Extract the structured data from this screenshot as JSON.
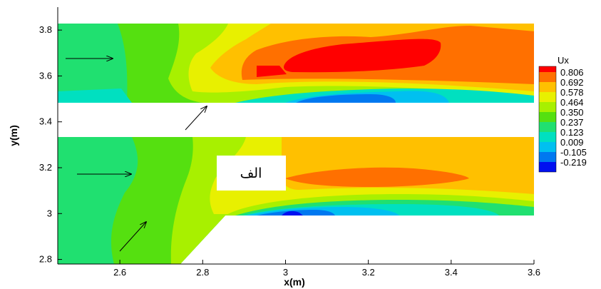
{
  "chart_data": {
    "type": "heatmap",
    "title": "",
    "xlabel": "x(m)",
    "ylabel": "y(m)",
    "xlim": [
      2.45,
      3.6
    ],
    "ylim": [
      2.78,
      3.9
    ],
    "x_ticks": [
      {
        "value": 2.6,
        "label": "2.6"
      },
      {
        "value": 2.8,
        "label": "2.8"
      },
      {
        "value": 3.0,
        "label": "3"
      },
      {
        "value": 3.2,
        "label": "3.2"
      },
      {
        "value": 3.4,
        "label": "3.4"
      },
      {
        "value": 3.6,
        "label": "3.6"
      }
    ],
    "y_ticks": [
      {
        "value": 2.8,
        "label": "2.8"
      },
      {
        "value": 3.0,
        "label": "3"
      },
      {
        "value": 3.2,
        "label": "3.2"
      },
      {
        "value": 3.4,
        "label": "3.4"
      },
      {
        "value": 3.6,
        "label": "3.6"
      },
      {
        "value": 3.8,
        "label": "3.8"
      }
    ],
    "legend": {
      "title": "Ux",
      "placement": "right",
      "levels": [
        {
          "label": "0.806",
          "color": "#ff7000"
        },
        {
          "label": "0.692",
          "color": "#ffc000"
        },
        {
          "label": "0.578",
          "color": "#e8f000"
        },
        {
          "label": "0.464",
          "color": "#a8f000"
        },
        {
          "label": "0.350",
          "color": "#55e010"
        },
        {
          "label": "0.237",
          "color": "#20e070"
        },
        {
          "label": "0.123",
          "color": "#00e0c0"
        },
        {
          "label": "0.009",
          "color": "#00c0f0"
        },
        {
          "label": "-0.105",
          "color": "#0078f0"
        },
        {
          "label": "-0.219",
          "color": "#0010f0"
        }
      ],
      "top_color": "#ff0000"
    },
    "annotation_text": "الف"
  }
}
